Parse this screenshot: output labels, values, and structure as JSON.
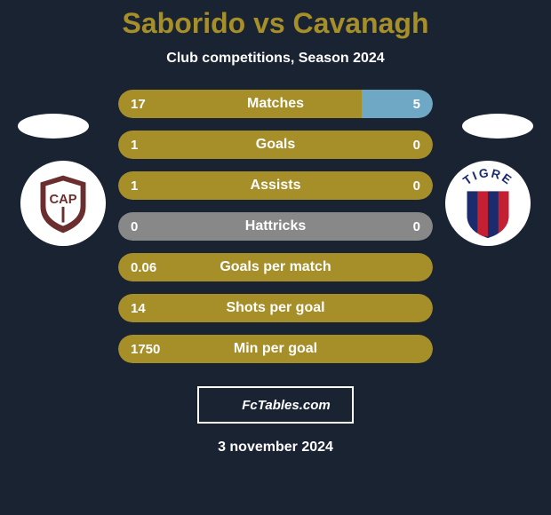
{
  "colors": {
    "background": "#1a2332",
    "title": "#a68e28",
    "text": "#ffffff",
    "bar_player1": "#a68e28",
    "bar_player2": "#6fa8c4",
    "bar_neutral": "#888888"
  },
  "title": "Saborido vs Cavanagh",
  "subtitle": "Club competitions, Season 2024",
  "date": "3 november 2024",
  "fctables_label": "FcTables.com",
  "stats": [
    {
      "label": "Matches",
      "p1_val": "17",
      "p2_val": "5",
      "p1_pct": 77.3,
      "p2_pct": 22.7,
      "type": "split"
    },
    {
      "label": "Goals",
      "p1_val": "1",
      "p2_val": "0",
      "p1_pct": 100,
      "p2_pct": 0,
      "type": "full_p1"
    },
    {
      "label": "Assists",
      "p1_val": "1",
      "p2_val": "0",
      "p1_pct": 100,
      "p2_pct": 0,
      "type": "full_p1"
    },
    {
      "label": "Hattricks",
      "p1_val": "0",
      "p2_val": "0",
      "p1_pct": 0,
      "p2_pct": 0,
      "type": "neutral"
    },
    {
      "label": "Goals per match",
      "p1_val": "0.06",
      "p2_val": "",
      "p1_pct": 100,
      "p2_pct": 0,
      "type": "full_p1"
    },
    {
      "label": "Shots per goal",
      "p1_val": "14",
      "p2_val": "",
      "p1_pct": 100,
      "p2_pct": 0,
      "type": "full_p1"
    },
    {
      "label": "Min per goal",
      "p1_val": "1750",
      "p2_val": "",
      "p1_pct": 100,
      "p2_pct": 0,
      "type": "full_p1"
    }
  ],
  "badges": {
    "player1": {
      "bg": "#ffffff",
      "shield_outer": "#6b2e2e",
      "shield_inner": "#ffffff",
      "letters": "CAP",
      "letters_color": "#6b2e2e"
    },
    "player2": {
      "bg": "#ffffff",
      "stripe1": "#1b2b6b",
      "stripe2": "#c42031",
      "arc_text": "TIGRE",
      "arc_color": "#1b2b6b"
    }
  }
}
